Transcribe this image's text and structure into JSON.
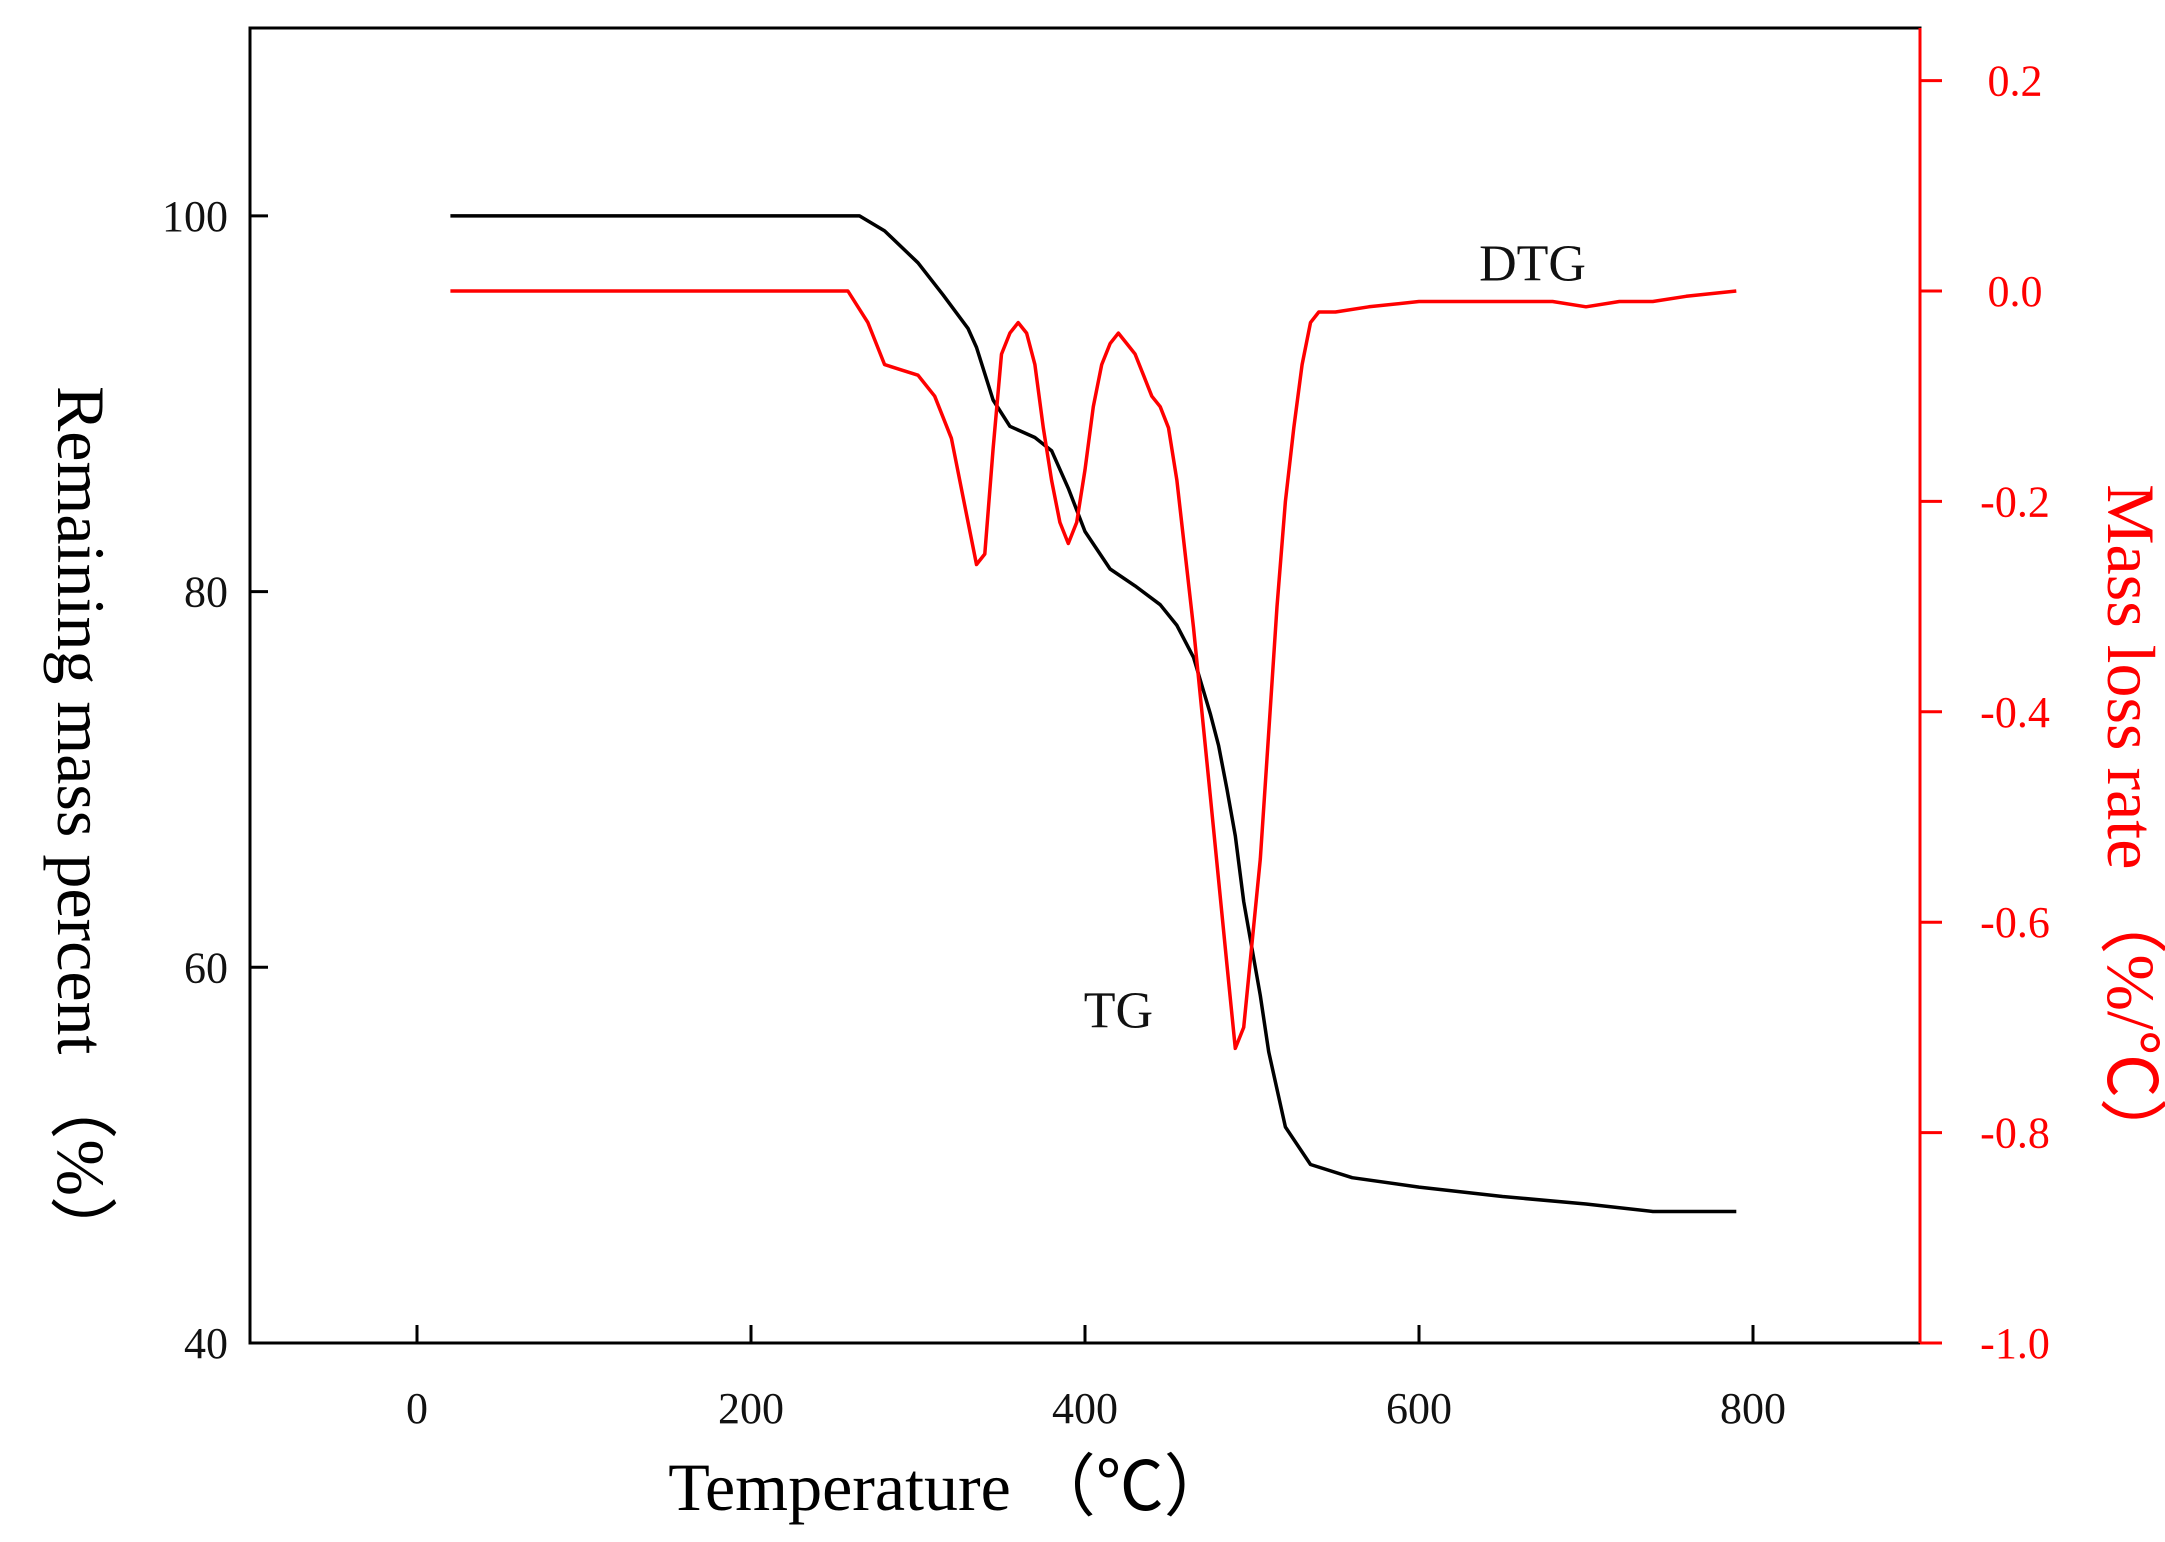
{
  "chart_data": {
    "type": "line",
    "title": "",
    "xlabel": "Temperature （℃）",
    "ylabel": "Remaining mass percent （%）",
    "y2label": "Mass loss rate （%/℃）",
    "xlim": [
      -100,
      900
    ],
    "ylim": [
      40,
      110
    ],
    "y2lim": [
      -1.0,
      0.25
    ],
    "xticks": [
      0,
      200,
      400,
      600,
      800
    ],
    "xtick_labels": [
      "0",
      "200",
      "400",
      "600",
      "800"
    ],
    "yticks": [
      40,
      60,
      80,
      100
    ],
    "ytick_labels": [
      "40",
      "60",
      "80",
      "100"
    ],
    "y2ticks": [
      -1.0,
      -0.8,
      -0.6,
      -0.4,
      -0.2,
      0.0,
      0.2
    ],
    "y2tick_labels": [
      "-1.0",
      "-0.8",
      "-0.6",
      "-0.4",
      "-0.2",
      "0.0",
      "0.2"
    ],
    "grid": false,
    "legend": "none",
    "annotations": [
      {
        "text": "DTG",
        "x": 668,
        "y2": 0.01
      },
      {
        "text": "TG",
        "x": 420,
        "y": 56.8
      }
    ],
    "series": [
      {
        "name": "TG",
        "axis": "left",
        "color": "#000000",
        "x": [
          20,
          100,
          200,
          265,
          280,
          300,
          315,
          330,
          335,
          345,
          355,
          370,
          380,
          390,
          400,
          415,
          430,
          445,
          455,
          465,
          470,
          475,
          480,
          485,
          490,
          495,
          500,
          505,
          510,
          520,
          535,
          560,
          600,
          650,
          700,
          740,
          790
        ],
        "y": [
          100,
          100,
          100,
          100,
          99.2,
          97.5,
          95.8,
          94,
          93,
          90.2,
          88.8,
          88.2,
          87.5,
          85.5,
          83.2,
          81.2,
          80.3,
          79.3,
          78.2,
          76.5,
          75,
          73.5,
          71.8,
          69.5,
          67,
          63.5,
          61,
          58.5,
          55.5,
          51.5,
          49.5,
          48.8,
          48.3,
          47.8,
          47.4,
          47,
          47
        ]
      },
      {
        "name": "DTG",
        "axis": "right",
        "color": "#ff0000",
        "x": [
          20,
          100,
          200,
          258,
          270,
          280,
          290,
          300,
          310,
          320,
          330,
          335,
          340,
          345,
          350,
          355,
          360,
          365,
          370,
          375,
          380,
          385,
          390,
          395,
          400,
          405,
          410,
          415,
          420,
          425,
          430,
          435,
          440,
          445,
          450,
          455,
          460,
          465,
          470,
          475,
          480,
          485,
          490,
          495,
          500,
          505,
          510,
          515,
          520,
          525,
          530,
          535,
          540,
          550,
          570,
          600,
          640,
          680,
          700,
          720,
          740,
          760,
          790
        ],
        "y": [
          0,
          0,
          0,
          0,
          -0.03,
          -0.07,
          -0.075,
          -0.08,
          -0.1,
          -0.14,
          -0.22,
          -0.26,
          -0.25,
          -0.15,
          -0.06,
          -0.04,
          -0.03,
          -0.04,
          -0.07,
          -0.13,
          -0.18,
          -0.22,
          -0.24,
          -0.22,
          -0.17,
          -0.11,
          -0.07,
          -0.05,
          -0.04,
          -0.05,
          -0.06,
          -0.08,
          -0.1,
          -0.11,
          -0.13,
          -0.18,
          -0.25,
          -0.32,
          -0.4,
          -0.48,
          -0.56,
          -0.64,
          -0.72,
          -0.7,
          -0.62,
          -0.54,
          -0.42,
          -0.3,
          -0.2,
          -0.13,
          -0.07,
          -0.03,
          -0.02,
          -0.02,
          -0.015,
          -0.01,
          -0.01,
          -0.01,
          -0.015,
          -0.01,
          -0.01,
          -0.005,
          0
        ]
      }
    ]
  }
}
